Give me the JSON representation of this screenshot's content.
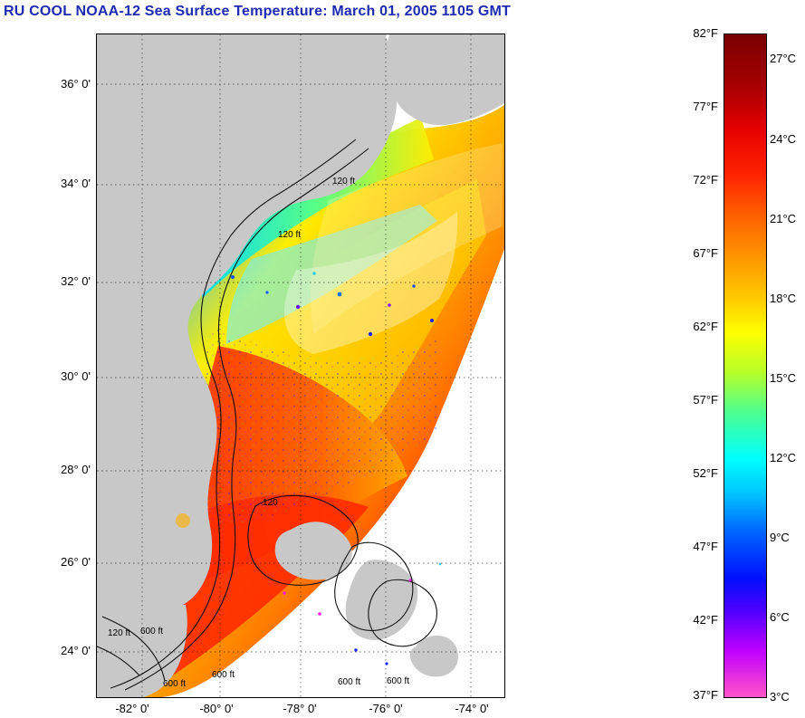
{
  "title": "RU COOL  NOAA-12  Sea Surface Temperature:  March 01, 2005 1105 GMT",
  "map": {
    "y_ticks": [
      "36° 0'",
      "34° 0'",
      "32° 0'",
      "30° 0'",
      "28° 0'",
      "26° 0'",
      "24° 0'"
    ],
    "x_ticks": [
      "-82° 0'",
      "-80° 0'",
      "-78° 0'",
      "-76° 0'",
      "-74° 0'"
    ],
    "contour_labels": [
      "120 ft",
      "120 ft",
      "120 ft",
      "600 ft",
      "600 ft",
      "600 ft",
      "600 ft",
      "120",
      "600 ft"
    ]
  },
  "colorbar": {
    "fahrenheit": [
      "82°F",
      "77°F",
      "72°F",
      "67°F",
      "62°F",
      "57°F",
      "52°F",
      "47°F",
      "42°F",
      "37°F"
    ],
    "celsius": [
      "27°C",
      "24°C",
      "21°C",
      "18°C",
      "15°C",
      "12°C",
      "9°C",
      "6°C",
      "3°C"
    ]
  },
  "colors": {
    "land": "#c8c8c8",
    "title": "#1f2bb0",
    "warm": "#ff3300",
    "mid": "#ffcc00",
    "cool": "#00c8ff",
    "cold": "#0010ff"
  }
}
